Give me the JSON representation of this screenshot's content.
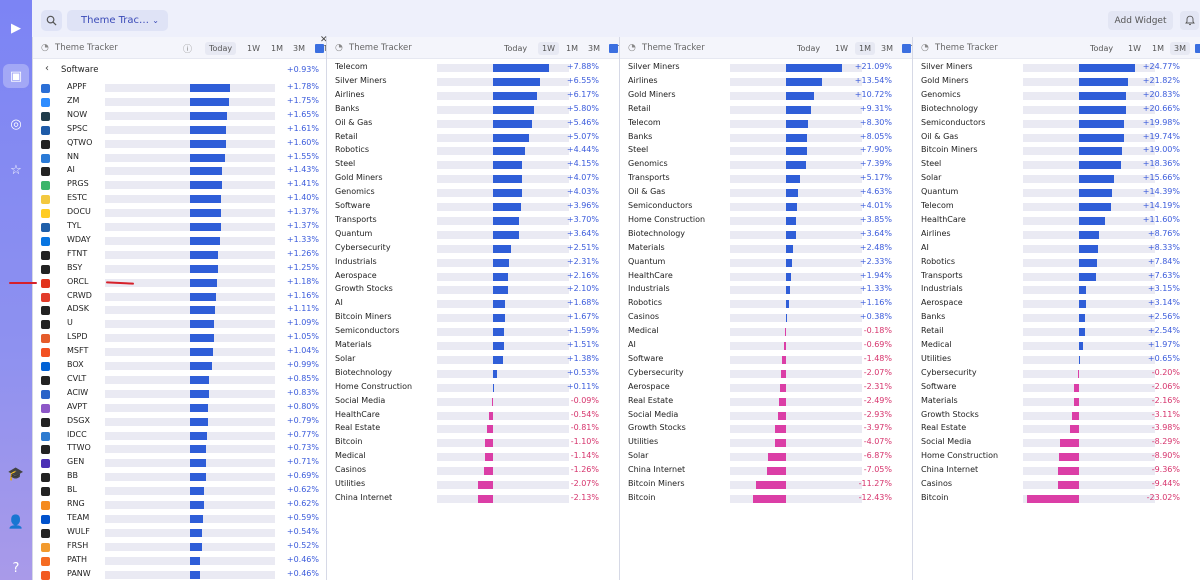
{
  "header": {
    "theme_select_label": "Theme Trac…",
    "add_widget_label": "Add Widget"
  },
  "colors": {
    "positive": "#2f5ed8",
    "negative": "#db3ea6",
    "sidebar": "#8089f2"
  },
  "sidebar_icons": [
    "play-logo-icon",
    "dashboard-icon",
    "donut-icon",
    "star-icon",
    "graduation-cap-icon",
    "user-icon",
    "help-icon"
  ],
  "software_panel": {
    "title": "Theme Tracker",
    "timeframes": [
      "Today",
      "1W",
      "1M",
      "3M",
      "YTD"
    ],
    "selected_timeframe": "Today",
    "group_name": "Software",
    "group_change": "+0.93%",
    "rows": [
      {
        "ticker": "APPF",
        "change": "+1.78%",
        "value": 1.78,
        "icon_color": "#2b6fd6"
      },
      {
        "ticker": "ZM",
        "change": "+1.75%",
        "value": 1.75,
        "icon_color": "#2d8cff"
      },
      {
        "ticker": "NOW",
        "change": "+1.65%",
        "value": 1.65,
        "icon_color": "#1e3b4a"
      },
      {
        "ticker": "SPSC",
        "change": "+1.61%",
        "value": 1.61,
        "icon_color": "#1e5ba8"
      },
      {
        "ticker": "QTWO",
        "change": "+1.60%",
        "value": 1.6,
        "icon_color": "#222"
      },
      {
        "ticker": "NN",
        "change": "+1.55%",
        "value": 1.55,
        "icon_color": "#2a7ad6"
      },
      {
        "ticker": "AI",
        "change": "+1.43%",
        "value": 1.43,
        "icon_color": "#222"
      },
      {
        "ticker": "PRGS",
        "change": "+1.41%",
        "value": 1.41,
        "icon_color": "#3bb56a"
      },
      {
        "ticker": "ESTC",
        "change": "+1.40%",
        "value": 1.4,
        "icon_color": "#f3c83f"
      },
      {
        "ticker": "DOCU",
        "change": "+1.37%",
        "value": 1.37,
        "icon_color": "#ffcc22"
      },
      {
        "ticker": "TYL",
        "change": "+1.37%",
        "value": 1.37,
        "icon_color": "#1f5fa9"
      },
      {
        "ticker": "WDAY",
        "change": "+1.33%",
        "value": 1.33,
        "icon_color": "#0875e1"
      },
      {
        "ticker": "FTNT",
        "change": "+1.26%",
        "value": 1.26,
        "icon_color": "#222"
      },
      {
        "ticker": "BSY",
        "change": "+1.25%",
        "value": 1.25,
        "icon_color": "#222"
      },
      {
        "ticker": "ORCL",
        "change": "+1.18%",
        "value": 1.18,
        "icon_color": "#e2341d"
      },
      {
        "ticker": "CRWD",
        "change": "+1.16%",
        "value": 1.16,
        "icon_color": "#e23b2a"
      },
      {
        "ticker": "ADSK",
        "change": "+1.11%",
        "value": 1.11,
        "icon_color": "#222"
      },
      {
        "ticker": "U",
        "change": "+1.09%",
        "value": 1.09,
        "icon_color": "#222"
      },
      {
        "ticker": "LSPD",
        "change": "+1.05%",
        "value": 1.05,
        "icon_color": "#e55b2a"
      },
      {
        "ticker": "MSFT",
        "change": "+1.04%",
        "value": 1.04,
        "icon_color": "#f25022"
      },
      {
        "ticker": "BOX",
        "change": "+0.99%",
        "value": 0.99,
        "icon_color": "#0061d5"
      },
      {
        "ticker": "CVLT",
        "change": "+0.85%",
        "value": 0.85,
        "icon_color": "#222"
      },
      {
        "ticker": "ACIW",
        "change": "+0.83%",
        "value": 0.83,
        "icon_color": "#2a63c8"
      },
      {
        "ticker": "AVPT",
        "change": "+0.80%",
        "value": 0.8,
        "icon_color": "#8d57c7"
      },
      {
        "ticker": "DSGX",
        "change": "+0.79%",
        "value": 0.79,
        "icon_color": "#222"
      },
      {
        "ticker": "IDCC",
        "change": "+0.77%",
        "value": 0.77,
        "icon_color": "#2c7ad0"
      },
      {
        "ticker": "TTWO",
        "change": "+0.73%",
        "value": 0.73,
        "icon_color": "#222"
      },
      {
        "ticker": "GEN",
        "change": "+0.71%",
        "value": 0.71,
        "icon_color": "#4a2fb5"
      },
      {
        "ticker": "BB",
        "change": "+0.69%",
        "value": 0.69,
        "icon_color": "#222"
      },
      {
        "ticker": "BL",
        "change": "+0.62%",
        "value": 0.62,
        "icon_color": "#222"
      },
      {
        "ticker": "RNG",
        "change": "+0.62%",
        "value": 0.62,
        "icon_color": "#f48a1e"
      },
      {
        "ticker": "TEAM",
        "change": "+0.59%",
        "value": 0.59,
        "icon_color": "#0052cc"
      },
      {
        "ticker": "WULF",
        "change": "+0.54%",
        "value": 0.54,
        "icon_color": "#222"
      },
      {
        "ticker": "FRSH",
        "change": "+0.52%",
        "value": 0.52,
        "icon_color": "#f29a2e"
      },
      {
        "ticker": "PATH",
        "change": "+0.46%",
        "value": 0.46,
        "icon_color": "#f56b22"
      },
      {
        "ticker": "PANW",
        "change": "+0.46%",
        "value": 0.46,
        "icon_color": "#f25b22"
      }
    ]
  },
  "theme_panels": [
    {
      "title": "Theme Tracker",
      "timeframes": [
        "Today",
        "1W",
        "1M",
        "3M",
        "YTD"
      ],
      "selected_timeframe": "1W",
      "rows": [
        {
          "name": "Telecom",
          "change": "+7.88%",
          "value": 7.88
        },
        {
          "name": "Silver Miners",
          "change": "+6.55%",
          "value": 6.55
        },
        {
          "name": "Airlines",
          "change": "+6.17%",
          "value": 6.17
        },
        {
          "name": "Banks",
          "change": "+5.80%",
          "value": 5.8
        },
        {
          "name": "Oil & Gas",
          "change": "+5.46%",
          "value": 5.46
        },
        {
          "name": "Retail",
          "change": "+5.07%",
          "value": 5.07
        },
        {
          "name": "Robotics",
          "change": "+4.44%",
          "value": 4.44
        },
        {
          "name": "Steel",
          "change": "+4.15%",
          "value": 4.15
        },
        {
          "name": "Gold Miners",
          "change": "+4.07%",
          "value": 4.07
        },
        {
          "name": "Genomics",
          "change": "+4.03%",
          "value": 4.03
        },
        {
          "name": "Software",
          "change": "+3.96%",
          "value": 3.96
        },
        {
          "name": "Transports",
          "change": "+3.70%",
          "value": 3.7
        },
        {
          "name": "Quantum",
          "change": "+3.64%",
          "value": 3.64
        },
        {
          "name": "Cybersecurity",
          "change": "+2.51%",
          "value": 2.51
        },
        {
          "name": "Industrials",
          "change": "+2.31%",
          "value": 2.31
        },
        {
          "name": "Aerospace",
          "change": "+2.16%",
          "value": 2.16
        },
        {
          "name": "Growth Stocks",
          "change": "+2.10%",
          "value": 2.1
        },
        {
          "name": "AI",
          "change": "+1.68%",
          "value": 1.68
        },
        {
          "name": "Bitcoin Miners",
          "change": "+1.67%",
          "value": 1.67
        },
        {
          "name": "Semiconductors",
          "change": "+1.59%",
          "value": 1.59
        },
        {
          "name": "Materials",
          "change": "+1.51%",
          "value": 1.51
        },
        {
          "name": "Solar",
          "change": "+1.38%",
          "value": 1.38
        },
        {
          "name": "Biotechnology",
          "change": "+0.53%",
          "value": 0.53
        },
        {
          "name": "Home Construction",
          "change": "+0.11%",
          "value": 0.11
        },
        {
          "name": "Social Media",
          "change": "-0.09%",
          "value": -0.09
        },
        {
          "name": "HealthCare",
          "change": "-0.54%",
          "value": -0.54
        },
        {
          "name": "Real Estate",
          "change": "-0.81%",
          "value": -0.81
        },
        {
          "name": "Bitcoin",
          "change": "-1.10%",
          "value": -1.1
        },
        {
          "name": "Medical",
          "change": "-1.14%",
          "value": -1.14
        },
        {
          "name": "Casinos",
          "change": "-1.26%",
          "value": -1.26
        },
        {
          "name": "Utilities",
          "change": "-2.07%",
          "value": -2.07
        },
        {
          "name": "China Internet",
          "change": "-2.13%",
          "value": -2.13
        }
      ]
    },
    {
      "title": "Theme Tracker",
      "timeframes": [
        "Today",
        "1W",
        "1M",
        "3M",
        "YTD"
      ],
      "selected_timeframe": "1M",
      "rows": [
        {
          "name": "Silver Miners",
          "change": "+21.09%",
          "value": 21.09
        },
        {
          "name": "Airlines",
          "change": "+13.54%",
          "value": 13.54
        },
        {
          "name": "Gold Miners",
          "change": "+10.72%",
          "value": 10.72
        },
        {
          "name": "Retail",
          "change": "+9.31%",
          "value": 9.31
        },
        {
          "name": "Telecom",
          "change": "+8.30%",
          "value": 8.3
        },
        {
          "name": "Banks",
          "change": "+8.05%",
          "value": 8.05
        },
        {
          "name": "Steel",
          "change": "+7.90%",
          "value": 7.9
        },
        {
          "name": "Genomics",
          "change": "+7.39%",
          "value": 7.39
        },
        {
          "name": "Transports",
          "change": "+5.17%",
          "value": 5.17
        },
        {
          "name": "Oil & Gas",
          "change": "+4.63%",
          "value": 4.63
        },
        {
          "name": "Semiconductors",
          "change": "+4.01%",
          "value": 4.01
        },
        {
          "name": "Home Construction",
          "change": "+3.85%",
          "value": 3.85
        },
        {
          "name": "Biotechnology",
          "change": "+3.64%",
          "value": 3.64
        },
        {
          "name": "Materials",
          "change": "+2.48%",
          "value": 2.48
        },
        {
          "name": "Quantum",
          "change": "+2.33%",
          "value": 2.33
        },
        {
          "name": "HealthCare",
          "change": "+1.94%",
          "value": 1.94
        },
        {
          "name": "Industrials",
          "change": "+1.33%",
          "value": 1.33
        },
        {
          "name": "Robotics",
          "change": "+1.16%",
          "value": 1.16
        },
        {
          "name": "Casinos",
          "change": "+0.38%",
          "value": 0.38
        },
        {
          "name": "Medical",
          "change": "-0.18%",
          "value": -0.18
        },
        {
          "name": "AI",
          "change": "-0.69%",
          "value": -0.69
        },
        {
          "name": "Software",
          "change": "-1.48%",
          "value": -1.48
        },
        {
          "name": "Cybersecurity",
          "change": "-2.07%",
          "value": -2.07
        },
        {
          "name": "Aerospace",
          "change": "-2.31%",
          "value": -2.31
        },
        {
          "name": "Real Estate",
          "change": "-2.49%",
          "value": -2.49
        },
        {
          "name": "Social Media",
          "change": "-2.93%",
          "value": -2.93
        },
        {
          "name": "Growth Stocks",
          "change": "-3.97%",
          "value": -3.97
        },
        {
          "name": "Utilities",
          "change": "-4.07%",
          "value": -4.07
        },
        {
          "name": "Solar",
          "change": "-6.87%",
          "value": -6.87
        },
        {
          "name": "China Internet",
          "change": "-7.05%",
          "value": -7.05
        },
        {
          "name": "Bitcoin Miners",
          "change": "-11.27%",
          "value": -11.27
        },
        {
          "name": "Bitcoin",
          "change": "-12.43%",
          "value": -12.43
        }
      ]
    },
    {
      "title": "Theme Tracker",
      "timeframes": [
        "Today",
        "1W",
        "1M",
        "3M",
        "YTD"
      ],
      "selected_timeframe": "3M",
      "rows": [
        {
          "name": "Silver Miners",
          "change": "+24.77%",
          "value": 24.77
        },
        {
          "name": "Gold Miners",
          "change": "+21.82%",
          "value": 21.82
        },
        {
          "name": "Genomics",
          "change": "+20.83%",
          "value": 20.83
        },
        {
          "name": "Biotechnology",
          "change": "+20.66%",
          "value": 20.66
        },
        {
          "name": "Semiconductors",
          "change": "+19.98%",
          "value": 19.98
        },
        {
          "name": "Oil & Gas",
          "change": "+19.74%",
          "value": 19.74
        },
        {
          "name": "Bitcoin Miners",
          "change": "+19.00%",
          "value": 19.0
        },
        {
          "name": "Steel",
          "change": "+18.36%",
          "value": 18.36
        },
        {
          "name": "Solar",
          "change": "+15.66%",
          "value": 15.66
        },
        {
          "name": "Quantum",
          "change": "+14.39%",
          "value": 14.39
        },
        {
          "name": "Telecom",
          "change": "+14.19%",
          "value": 14.19
        },
        {
          "name": "HealthCare",
          "change": "+11.60%",
          "value": 11.6
        },
        {
          "name": "Airlines",
          "change": "+8.76%",
          "value": 8.76
        },
        {
          "name": "AI",
          "change": "+8.33%",
          "value": 8.33
        },
        {
          "name": "Robotics",
          "change": "+7.84%",
          "value": 7.84
        },
        {
          "name": "Transports",
          "change": "+7.63%",
          "value": 7.63
        },
        {
          "name": "Industrials",
          "change": "+3.15%",
          "value": 3.15
        },
        {
          "name": "Aerospace",
          "change": "+3.14%",
          "value": 3.14
        },
        {
          "name": "Banks",
          "change": "+2.56%",
          "value": 2.56
        },
        {
          "name": "Retail",
          "change": "+2.54%",
          "value": 2.54
        },
        {
          "name": "Medical",
          "change": "+1.97%",
          "value": 1.97
        },
        {
          "name": "Utilities",
          "change": "+0.65%",
          "value": 0.65
        },
        {
          "name": "Cybersecurity",
          "change": "-0.20%",
          "value": -0.2
        },
        {
          "name": "Software",
          "change": "-2.06%",
          "value": -2.06
        },
        {
          "name": "Materials",
          "change": "-2.16%",
          "value": -2.16
        },
        {
          "name": "Growth Stocks",
          "change": "-3.11%",
          "value": -3.11
        },
        {
          "name": "Real Estate",
          "change": "-3.98%",
          "value": -3.98
        },
        {
          "name": "Social Media",
          "change": "-8.29%",
          "value": -8.29
        },
        {
          "name": "Home Construction",
          "change": "-8.90%",
          "value": -8.9
        },
        {
          "name": "China Internet",
          "change": "-9.36%",
          "value": -9.36
        },
        {
          "name": "Casinos",
          "change": "-9.44%",
          "value": -9.44
        },
        {
          "name": "Bitcoin",
          "change": "-23.02%",
          "value": -23.02
        }
      ]
    }
  ]
}
